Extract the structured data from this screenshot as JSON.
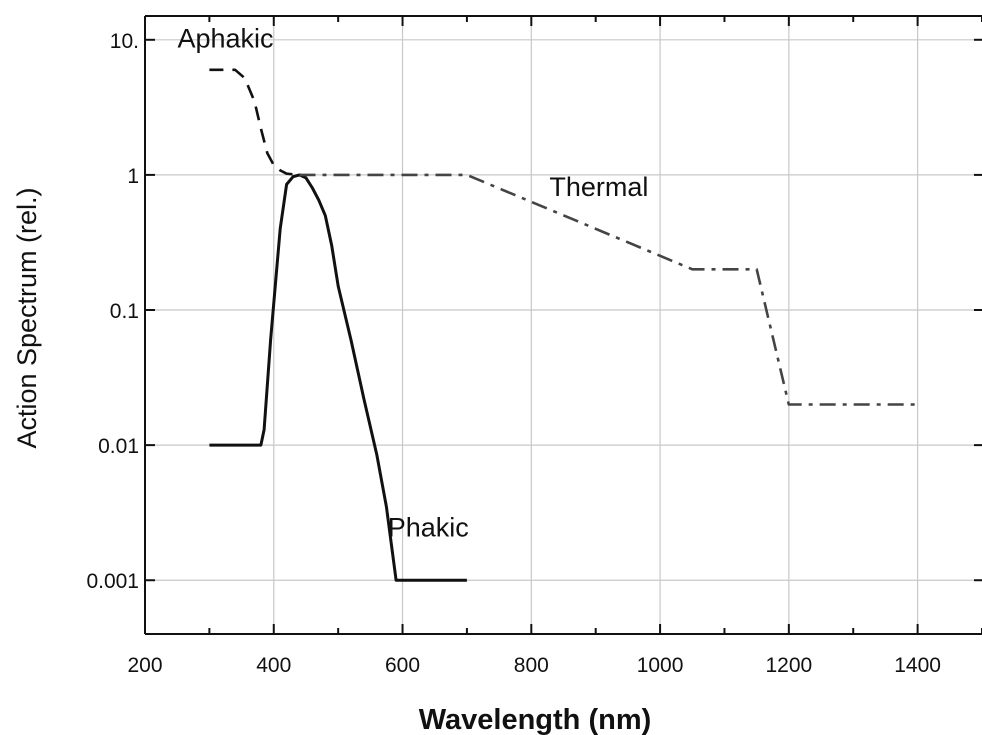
{
  "chart_data": {
    "type": "line",
    "title": "",
    "xlabel": "Wavelength (nm)",
    "ylabel": "Action Spectrum (rel.)",
    "xlim": [
      200,
      1500
    ],
    "ylim": [
      0.0004,
      15
    ],
    "y_scale": "log",
    "grid": true,
    "x_ticks": [
      200,
      400,
      600,
      800,
      1000,
      1200,
      1400
    ],
    "x_tick_labels": [
      "200",
      "400",
      "600",
      "800",
      "1000",
      "1200",
      "1400"
    ],
    "y_ticks": [
      0.001,
      0.01,
      0.1,
      1,
      10
    ],
    "y_tick_labels": [
      "0.001",
      "0.01",
      "0.1",
      "1",
      "10."
    ],
    "series": [
      {
        "name": "Phakic",
        "line_style": "solid",
        "color": "#111111",
        "x": [
          300,
          380,
          385,
          395,
          410,
          420,
          430,
          440,
          450,
          460,
          470,
          480,
          490,
          500,
          520,
          540,
          560,
          575,
          590,
          700
        ],
        "y": [
          0.01,
          0.01,
          0.013,
          0.06,
          0.4,
          0.85,
          0.97,
          1.0,
          0.95,
          0.8,
          0.65,
          0.5,
          0.3,
          0.15,
          0.06,
          0.022,
          0.0085,
          0.0035,
          0.001,
          0.001
        ]
      },
      {
        "name": "Aphakic",
        "line_style": "dashed",
        "color": "#111111",
        "x": [
          300,
          340,
          355,
          370,
          380,
          390,
          400,
          410,
          420,
          440
        ],
        "y": [
          6,
          6,
          5.2,
          3.5,
          2.2,
          1.45,
          1.18,
          1.08,
          1.02,
          1.0
        ]
      },
      {
        "name": "Thermal",
        "line_style": "dash-dot",
        "color": "#444444",
        "x": [
          440,
          700,
          1050,
          1150,
          1200,
          1400
        ],
        "y": [
          1,
          1,
          0.2,
          0.2,
          0.02,
          0.02
        ]
      }
    ],
    "series_label_positions": {
      "Aphakic": {
        "x": 325,
        "y": 8.8
      },
      "Thermal": {
        "x": 905,
        "y": 0.7
      },
      "Phakic": {
        "x": 640,
        "y": 0.0021
      }
    }
  }
}
